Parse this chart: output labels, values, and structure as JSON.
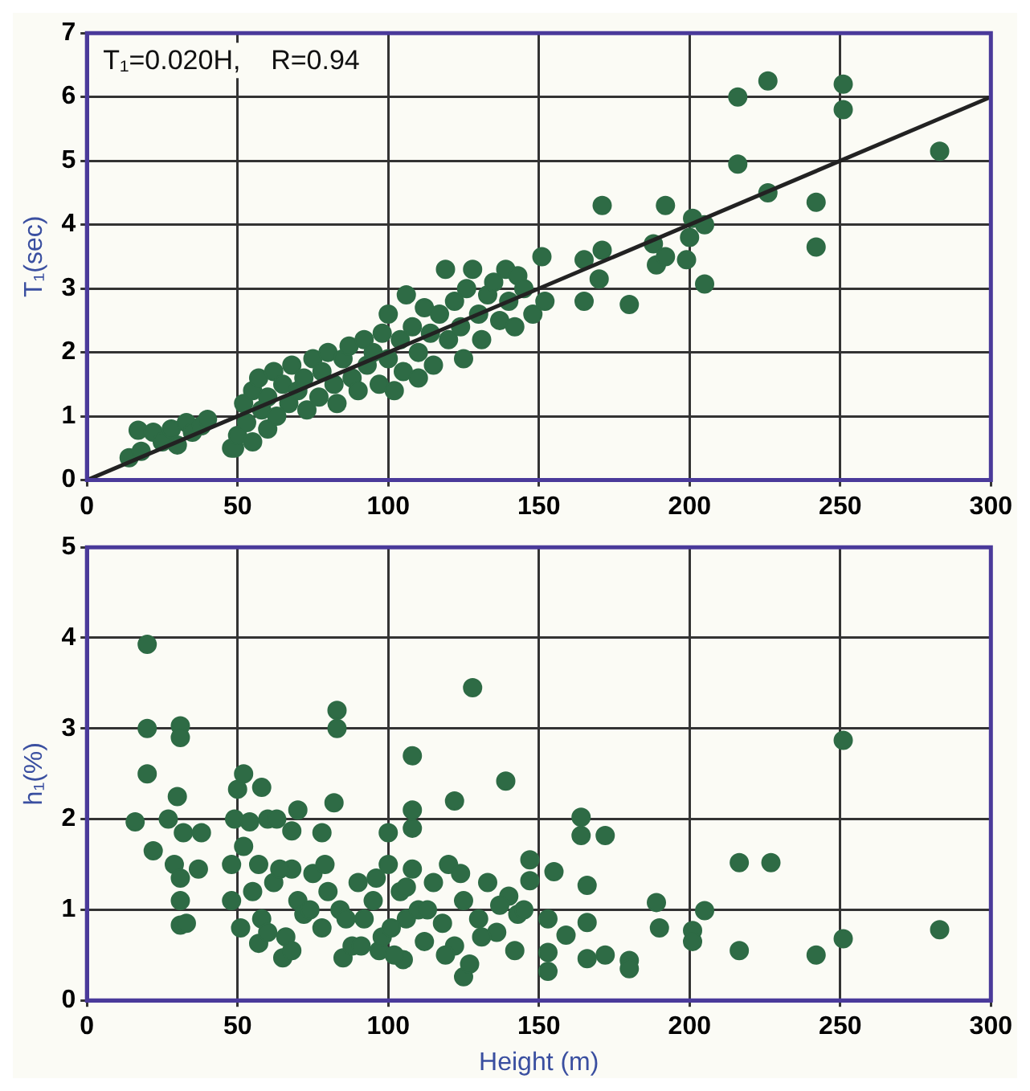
{
  "chart_data": [
    {
      "type": "scatter",
      "ylabel": "T₁(sec)",
      "annotations": [
        "T₁=0.020H,    R=0.94"
      ],
      "xlim": [
        0,
        300
      ],
      "xticks": [
        0,
        50,
        100,
        150,
        200,
        250,
        300
      ],
      "ylim": [
        0,
        7
      ],
      "yticks": [
        0,
        1,
        2,
        3,
        4,
        5,
        6,
        7
      ],
      "grid": true,
      "marker": "circle",
      "series": [
        {
          "type": "scatter",
          "color": "#2e6b45",
          "x": [
            14,
            17,
            18,
            22,
            25,
            28,
            30,
            33,
            35,
            38,
            40,
            48,
            49,
            50,
            52,
            53,
            55,
            55,
            57,
            58,
            60,
            60,
            62,
            63,
            65,
            67,
            68,
            70,
            72,
            73,
            75,
            77,
            78,
            80,
            82,
            83,
            85,
            87,
            88,
            90,
            92,
            93,
            95,
            97,
            98,
            100,
            100,
            102,
            104,
            105,
            106,
            108,
            110,
            110,
            112,
            114,
            115,
            117,
            119,
            120,
            122,
            124,
            125,
            126,
            128,
            130,
            131,
            133,
            135,
            137,
            139,
            140,
            142,
            143,
            145,
            148,
            151,
            152,
            165,
            165,
            170,
            171,
            171,
            180,
            188,
            189,
            192,
            192,
            199,
            200,
            201,
            205,
            205,
            216,
            216,
            226,
            226,
            242,
            242,
            251,
            251,
            283
          ],
          "values": [
            0.35,
            0.78,
            0.45,
            0.75,
            0.6,
            0.8,
            0.55,
            0.9,
            0.75,
            0.85,
            0.95,
            0.5,
            0.5,
            0.7,
            1.2,
            0.9,
            1.4,
            0.6,
            1.6,
            1.1,
            1.3,
            0.8,
            1.7,
            1.0,
            1.5,
            1.2,
            1.8,
            1.4,
            1.6,
            1.1,
            1.9,
            1.3,
            1.7,
            2.0,
            1.5,
            1.2,
            1.9,
            2.1,
            1.6,
            1.4,
            2.2,
            1.8,
            2.0,
            1.5,
            2.3,
            1.9,
            2.6,
            1.4,
            2.2,
            1.7,
            2.9,
            2.4,
            2.0,
            1.6,
            2.7,
            2.3,
            1.8,
            2.6,
            3.3,
            2.2,
            2.8,
            2.4,
            1.9,
            3.0,
            3.3,
            2.6,
            2.2,
            2.9,
            3.1,
            2.5,
            3.3,
            2.8,
            2.4,
            3.2,
            3.0,
            2.6,
            3.5,
            2.8,
            3.45,
            2.8,
            3.15,
            4.3,
            3.6,
            2.75,
            3.7,
            3.37,
            4.3,
            3.5,
            3.45,
            3.8,
            4.1,
            4.0,
            3.07,
            6.0,
            4.95,
            6.25,
            4.5,
            4.35,
            3.65,
            6.2,
            5.8,
            5.15
          ]
        },
        {
          "type": "line",
          "color": "#222222",
          "marker": "none",
          "x": [
            0,
            300
          ],
          "values": [
            0,
            6.0
          ]
        }
      ]
    },
    {
      "type": "scatter",
      "xlabel": "Height (m)",
      "ylabel": "h₁(%)",
      "xlim": [
        0,
        300
      ],
      "xticks": [
        0,
        50,
        100,
        150,
        200,
        250,
        300
      ],
      "ylim": [
        0,
        5
      ],
      "yticks": [
        0,
        1,
        2,
        3,
        4,
        5
      ],
      "grid": true,
      "marker": "circle",
      "series": [
        {
          "type": "scatter",
          "color": "#2e6b45",
          "x": [
            20,
            20,
            31,
            31,
            20,
            30,
            16,
            27,
            32,
            38,
            22,
            29,
            37,
            31,
            31,
            31,
            33,
            52,
            50,
            58,
            60,
            49,
            54,
            63,
            52,
            48,
            57,
            48,
            51,
            57,
            65,
            70,
            68,
            78,
            82,
            83,
            83,
            68,
            85,
            128,
            108,
            139,
            122,
            108,
            108,
            100,
            108,
            125,
            97,
            105,
            55,
            58,
            62,
            66,
            70,
            72,
            75,
            78,
            80,
            84,
            88,
            90,
            92,
            95,
            98,
            100,
            102,
            104,
            106,
            110,
            112,
            115,
            118,
            120,
            122,
            125,
            127,
            130,
            133,
            136,
            140,
            143,
            60,
            64,
            68,
            74,
            79,
            86,
            91,
            96,
            101,
            106,
            113,
            119,
            124,
            131,
            137,
            142,
            251,
            216.5,
            227,
            164,
            164,
            172,
            147,
            155,
            147,
            166,
            145,
            153,
            159,
            166,
            189,
            190,
            201,
            201,
            205,
            153,
            153,
            166,
            172,
            180,
            180,
            216.5,
            242,
            251,
            283
          ],
          "values": [
            3.93,
            3.0,
            3.03,
            2.9,
            2.5,
            2.25,
            1.97,
            2.0,
            1.85,
            1.85,
            1.65,
            1.5,
            1.45,
            1.35,
            1.1,
            0.83,
            0.85,
            2.5,
            2.33,
            2.35,
            2.0,
            2.0,
            1.97,
            2.0,
            1.7,
            1.5,
            1.5,
            1.1,
            0.8,
            0.63,
            0.47,
            2.1,
            1.87,
            1.85,
            2.18,
            3.2,
            3.0,
            1.45,
            0.47,
            3.45,
            2.7,
            2.42,
            2.2,
            2.1,
            1.9,
            1.85,
            1.45,
            0.26,
            0.55,
            0.45,
            1.2,
            0.9,
            1.3,
            0.7,
            1.1,
            0.95,
            1.4,
            0.8,
            1.2,
            1.0,
            0.6,
            1.3,
            0.9,
            1.1,
            0.7,
            1.5,
            0.5,
            1.2,
            0.9,
            1.0,
            0.65,
            1.3,
            0.85,
            1.5,
            0.6,
            1.1,
            0.4,
            0.9,
            1.3,
            0.75,
            1.15,
            0.95,
            0.75,
            1.45,
            0.55,
            1.0,
            1.5,
            0.9,
            0.6,
            1.35,
            0.8,
            1.25,
            1.0,
            0.5,
            1.4,
            0.7,
            1.05,
            0.55,
            2.87,
            1.52,
            1.52,
            2.02,
            1.82,
            1.82,
            1.55,
            1.42,
            1.32,
            1.27,
            1.0,
            0.9,
            0.72,
            0.86,
            1.08,
            0.8,
            0.77,
            0.65,
            0.99,
            0.53,
            0.32,
            0.46,
            0.5,
            0.44,
            0.35,
            0.55,
            0.5,
            0.68,
            0.78
          ]
        }
      ]
    }
  ]
}
